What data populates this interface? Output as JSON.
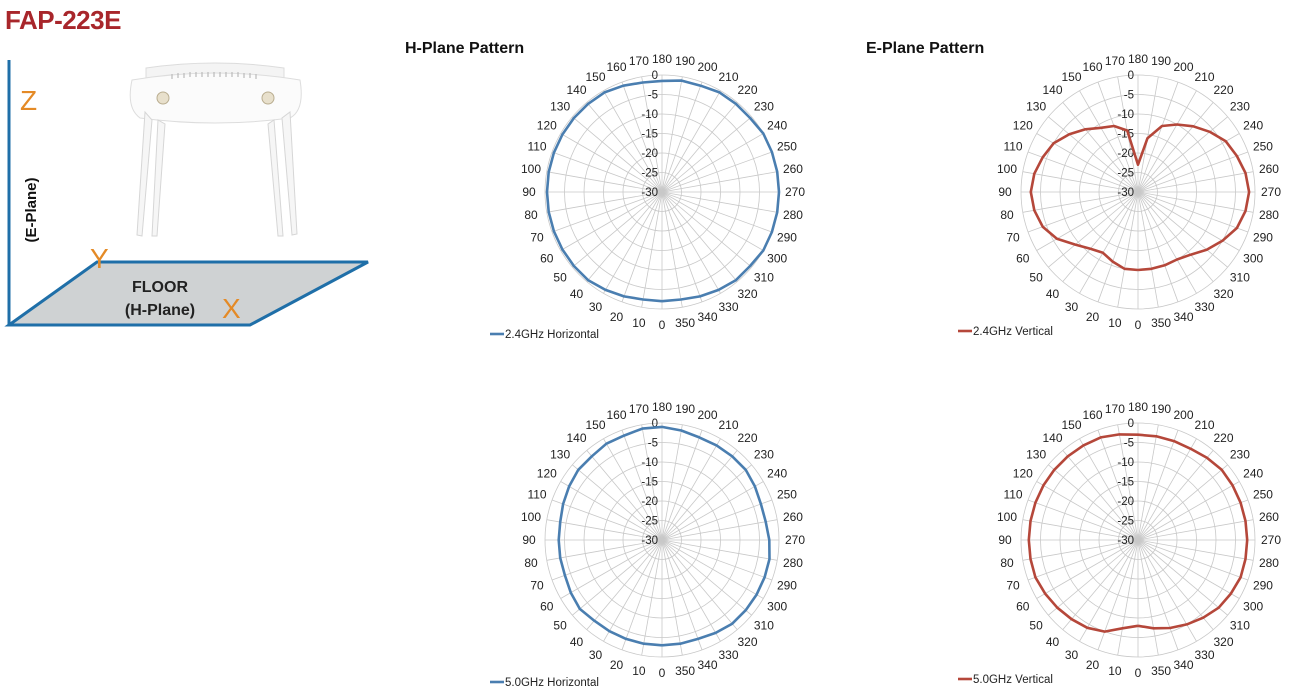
{
  "title": "FAP-223E",
  "diagram": {
    "z_label": "Z",
    "e_plane_label": "(E-Plane)",
    "y_label": "Y",
    "floor_label": "FLOOR",
    "h_plane_label": "(H-Plane)",
    "x_label": "X"
  },
  "sections": {
    "h_plane_title": "H-Plane Pattern",
    "e_plane_title": "E-Plane Pattern"
  },
  "colors": {
    "title": "#a8262b",
    "axis_accent": "#e48a26",
    "axis_line": "#1f6fa8",
    "floor_fill": "#cfd2d3",
    "horizontal_series": "#4a7eb0",
    "vertical_series": "#b5473a",
    "grid": "#c8c8c8"
  },
  "chart_data": [
    {
      "type": "polar",
      "id": "h24",
      "angle_labels": [
        "0",
        "10",
        "20",
        "30",
        "40",
        "50",
        "60",
        "70",
        "80",
        "90",
        "100",
        "110",
        "120",
        "130",
        "140",
        "150",
        "160",
        "170",
        "180",
        "190",
        "200",
        "210",
        "220",
        "230",
        "240",
        "250",
        "260",
        "270",
        "280",
        "290",
        "300",
        "310",
        "320",
        "330",
        "340",
        "350"
      ],
      "radial_labels": [
        "0",
        "-5",
        "-10",
        "-15",
        "-20",
        "-25",
        "-30"
      ],
      "rlim": [
        -30,
        0
      ],
      "series": [
        {
          "name": "2.4GHz Horizontal",
          "color": "#4a7eb0",
          "angles": [
            0,
            10,
            20,
            30,
            40,
            50,
            60,
            70,
            80,
            90,
            100,
            110,
            120,
            130,
            140,
            150,
            160,
            170,
            180,
            190,
            200,
            210,
            220,
            230,
            240,
            250,
            260,
            270,
            280,
            290,
            300,
            310,
            320,
            330,
            340,
            350
          ],
          "values": [
            -2,
            -2,
            -1.5,
            -1,
            -0.5,
            -0.5,
            -0.5,
            -0.5,
            -0.5,
            -0.5,
            -0.5,
            -0.5,
            -0.5,
            -0.5,
            -0.5,
            -0.5,
            -1,
            -1.5,
            -1.5,
            -1,
            -1,
            -0.5,
            -0.5,
            -0.5,
            0,
            0,
            0,
            0,
            0,
            0,
            0,
            -0.5,
            -0.5,
            -1,
            -1.5,
            -2
          ]
        }
      ]
    },
    {
      "type": "polar",
      "id": "e24",
      "angle_labels": [
        "0",
        "10",
        "20",
        "30",
        "40",
        "50",
        "60",
        "70",
        "80",
        "90",
        "100",
        "110",
        "120",
        "130",
        "140",
        "150",
        "160",
        "170",
        "180",
        "190",
        "200",
        "210",
        "220",
        "230",
        "240",
        "250",
        "260",
        "270",
        "280",
        "290",
        "300",
        "310",
        "320",
        "330",
        "340",
        "350"
      ],
      "radial_labels": [
        "0",
        "-5",
        "-10",
        "-15",
        "-20",
        "-25",
        "-30"
      ],
      "rlim": [
        -30,
        0
      ],
      "series": [
        {
          "name": "2.4GHz Vertical",
          "color": "#b5473a",
          "angles": [
            0,
            10,
            20,
            30,
            40,
            50,
            60,
            70,
            80,
            90,
            100,
            110,
            120,
            130,
            140,
            150,
            160,
            170,
            180,
            190,
            200,
            210,
            220,
            230,
            240,
            250,
            260,
            270,
            280,
            290,
            300,
            310,
            320,
            330,
            340,
            350
          ],
          "values": [
            -10,
            -10,
            -11,
            -12,
            -11,
            -9,
            -6,
            -4,
            -3,
            -2.5,
            -3,
            -4,
            -5,
            -7,
            -9,
            -11,
            -12,
            -14,
            -23,
            -16,
            -12,
            -10,
            -8,
            -6,
            -4,
            -3,
            -2,
            -1.5,
            -2,
            -3,
            -5,
            -7,
            -9,
            -10,
            -10,
            -10
          ]
        }
      ]
    },
    {
      "type": "polar",
      "id": "h50",
      "angle_labels": [
        "0",
        "10",
        "20",
        "30",
        "40",
        "50",
        "60",
        "70",
        "80",
        "90",
        "100",
        "110",
        "120",
        "130",
        "140",
        "150",
        "160",
        "170",
        "180",
        "190",
        "200",
        "210",
        "220",
        "230",
        "240",
        "250",
        "260",
        "270",
        "280",
        "290",
        "300",
        "310",
        "320",
        "330",
        "340",
        "350"
      ],
      "radial_labels": [
        "0",
        "-5",
        "-10",
        "-15",
        "-20",
        "-25",
        "-30"
      ],
      "rlim": [
        -30,
        0
      ],
      "series": [
        {
          "name": "5.0GHz Horizontal",
          "color": "#4a7eb0",
          "angles": [
            0,
            10,
            20,
            30,
            40,
            50,
            60,
            70,
            80,
            90,
            100,
            110,
            120,
            130,
            140,
            150,
            160,
            170,
            180,
            190,
            200,
            210,
            220,
            230,
            240,
            250,
            260,
            270,
            280,
            290,
            300,
            310,
            320,
            330,
            340,
            350
          ],
          "values": [
            -3,
            -3,
            -3,
            -3,
            -3,
            -2.5,
            -3,
            -3.5,
            -3.5,
            -3.5,
            -3.5,
            -3,
            -2.5,
            -2,
            -2,
            -1.5,
            -1.5,
            -1,
            -1,
            -1.5,
            -2,
            -2,
            -2,
            -2,
            -2.5,
            -3,
            -3,
            -2.5,
            -2,
            -2,
            -2,
            -2,
            -2,
            -2.5,
            -3,
            -3
          ]
        }
      ]
    },
    {
      "type": "polar",
      "id": "e50",
      "angle_labels": [
        "0",
        "10",
        "20",
        "30",
        "40",
        "50",
        "60",
        "70",
        "80",
        "90",
        "100",
        "110",
        "120",
        "130",
        "140",
        "150",
        "160",
        "170",
        "180",
        "190",
        "200",
        "210",
        "220",
        "230",
        "240",
        "250",
        "260",
        "270",
        "280",
        "290",
        "300",
        "310",
        "320",
        "330",
        "340",
        "350"
      ],
      "radial_labels": [
        "0",
        "-5",
        "-10",
        "-15",
        "-20",
        "-25",
        "-30"
      ],
      "rlim": [
        -30,
        0
      ],
      "series": [
        {
          "name": "5.0GHz Vertical",
          "color": "#b5473a",
          "angles": [
            0,
            10,
            20,
            30,
            40,
            50,
            60,
            70,
            80,
            90,
            100,
            110,
            120,
            130,
            140,
            150,
            160,
            170,
            180,
            190,
            200,
            210,
            220,
            230,
            240,
            250,
            260,
            270,
            280,
            290,
            300,
            310,
            320,
            330,
            340,
            350
          ],
          "values": [
            -8,
            -7,
            -5,
            -4,
            -3.5,
            -3,
            -2.5,
            -2,
            -2,
            -2,
            -2,
            -2,
            -2,
            -2,
            -2,
            -2,
            -2,
            -2.5,
            -3,
            -3,
            -3,
            -3,
            -2.5,
            -2,
            -2,
            -2,
            -2,
            -2,
            -2,
            -2,
            -2.5,
            -3,
            -4,
            -5,
            -6,
            -7
          ]
        }
      ]
    }
  ]
}
